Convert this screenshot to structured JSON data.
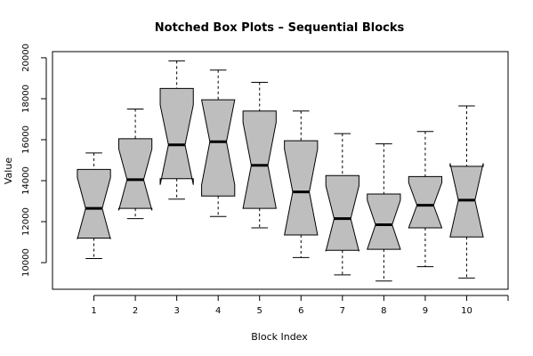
{
  "chart_data": {
    "type": "box",
    "title": "Notched Box Plots – Sequential Blocks",
    "xlabel": "Block Index",
    "ylabel": "Value",
    "categories": [
      "1",
      "2",
      "3",
      "4",
      "5",
      "6",
      "7",
      "8",
      "9",
      "10"
    ],
    "xlim": [
      0,
      11
    ],
    "ylim": [
      8700,
      20300
    ],
    "yticks": [
      10000,
      12000,
      14000,
      16000,
      18000,
      20000
    ],
    "grid": false,
    "legend": "none",
    "box_fill": "#bebebe",
    "boxes": [
      {
        "min": 10200,
        "q1": 11200,
        "median": 12650,
        "q3": 14550,
        "max": 15350,
        "notch_low": 11150,
        "notch_high": 14150
      },
      {
        "min": 12150,
        "q1": 12650,
        "median": 14050,
        "q3": 16050,
        "max": 17500,
        "notch_low": 12550,
        "notch_high": 15550
      },
      {
        "min": 13100,
        "q1": 14100,
        "median": 15750,
        "q3": 18500,
        "max": 19850,
        "notch_low": 13800,
        "notch_high": 17700
      },
      {
        "min": 12250,
        "q1": 13250,
        "median": 15900,
        "q3": 17950,
        "max": 19400,
        "notch_low": 13800,
        "notch_high": 17950
      },
      {
        "min": 11700,
        "q1": 12650,
        "median": 14750,
        "q3": 17400,
        "max": 18800,
        "notch_low": 12650,
        "notch_high": 16850
      },
      {
        "min": 10250,
        "q1": 11350,
        "median": 13450,
        "q3": 15950,
        "max": 17400,
        "notch_low": 11350,
        "notch_high": 15550
      },
      {
        "min": 9400,
        "q1": 10600,
        "median": 12150,
        "q3": 14250,
        "max": 16300,
        "notch_low": 10550,
        "notch_high": 13750
      },
      {
        "min": 9100,
        "q1": 10650,
        "median": 11850,
        "q3": 13350,
        "max": 15800,
        "notch_low": 10650,
        "notch_high": 13050
      },
      {
        "min": 9800,
        "q1": 11700,
        "median": 12800,
        "q3": 14200,
        "max": 16400,
        "notch_low": 11700,
        "notch_high": 13900
      },
      {
        "min": 9250,
        "q1": 11250,
        "median": 13050,
        "q3": 14700,
        "max": 17650,
        "notch_low": 11250,
        "notch_high": 14850
      }
    ]
  }
}
